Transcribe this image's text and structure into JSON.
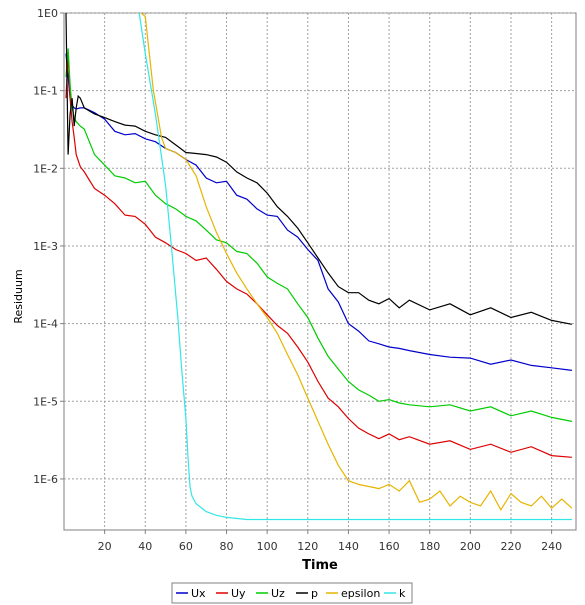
{
  "chart_data": {
    "type": "line",
    "xlabel": "Time",
    "ylabel": "Residuum",
    "yscale": "log",
    "xlim": [
      0,
      252
    ],
    "ylim": [
      2.2e-07,
      1
    ],
    "grid": true,
    "legend_position": "bottom",
    "x_ticks": [
      20,
      40,
      60,
      80,
      100,
      120,
      140,
      160,
      180,
      200,
      220,
      240
    ],
    "x_tick_labels": [
      "20",
      "40",
      "60",
      "80",
      "100",
      "120",
      "140",
      "160",
      "180",
      "200",
      "220",
      "240"
    ],
    "y_ticks": [
      1,
      0.1,
      0.01,
      0.001,
      0.0001,
      1e-05,
      1e-06
    ],
    "y_tick_labels": [
      "1E0",
      "1E-1",
      "1E-2",
      "1E-3",
      "1E-4",
      "1E-5",
      "1E-6"
    ],
    "series": [
      {
        "name": "Ux",
        "color": "#0000cc",
        "x": [
          1,
          2,
          3,
          4,
          5,
          6,
          8,
          10,
          15,
          20,
          25,
          30,
          35,
          40,
          45,
          50,
          55,
          60,
          65,
          70,
          75,
          80,
          85,
          90,
          95,
          100,
          105,
          110,
          115,
          120,
          125,
          130,
          135,
          140,
          145,
          150,
          155,
          160,
          165,
          170,
          180,
          190,
          200,
          210,
          220,
          230,
          240,
          250
        ],
        "y": [
          0.3,
          0.15,
          0.08,
          0.065,
          0.06,
          0.058,
          0.06,
          0.06,
          0.052,
          0.043,
          0.03,
          0.027,
          0.028,
          0.024,
          0.022,
          0.018,
          0.016,
          0.013,
          0.011,
          0.0075,
          0.0065,
          0.0068,
          0.0045,
          0.004,
          0.003,
          0.0025,
          0.0024,
          0.0016,
          0.0013,
          0.0009,
          0.00065,
          0.00028,
          0.00019,
          0.0001,
          8e-05,
          6e-05,
          5.5e-05,
          5e-05,
          4.8e-05,
          4.5e-05,
          4e-05,
          3.7e-05,
          3.6e-05,
          3e-05,
          3.4e-05,
          2.9e-05,
          2.7e-05,
          2.5e-05
        ]
      },
      {
        "name": "Uy",
        "color": "#dd0000",
        "x": [
          1,
          2,
          3,
          4,
          5,
          6,
          8,
          10,
          15,
          20,
          25,
          30,
          35,
          40,
          45,
          50,
          55,
          60,
          65,
          70,
          75,
          80,
          85,
          90,
          95,
          100,
          105,
          110,
          115,
          120,
          125,
          130,
          135,
          140,
          145,
          150,
          155,
          160,
          165,
          170,
          180,
          190,
          200,
          210,
          220,
          230,
          240,
          250
        ],
        "y": [
          0.08,
          0.3,
          0.08,
          0.04,
          0.025,
          0.015,
          0.0105,
          0.009,
          0.0055,
          0.0045,
          0.0035,
          0.0025,
          0.0024,
          0.0019,
          0.0013,
          0.0011,
          0.0009,
          0.0008,
          0.00065,
          0.0007,
          0.0005,
          0.00035,
          0.00028,
          0.00024,
          0.00018,
          0.00013,
          9.5e-05,
          7.5e-05,
          5e-05,
          3.2e-05,
          1.8e-05,
          1.1e-05,
          8.5e-06,
          6e-06,
          4.5e-06,
          3.8e-06,
          3.3e-06,
          3.8e-06,
          3.2e-06,
          3.5e-06,
          2.8e-06,
          3.1e-06,
          2.4e-06,
          2.8e-06,
          2.2e-06,
          2.6e-06,
          2e-06,
          1.9e-06
        ]
      },
      {
        "name": "Uz",
        "color": "#00cc00",
        "x": [
          1,
          2,
          3,
          4,
          5,
          6,
          8,
          10,
          15,
          20,
          25,
          30,
          35,
          40,
          45,
          50,
          55,
          60,
          65,
          70,
          75,
          80,
          85,
          90,
          95,
          100,
          105,
          110,
          115,
          120,
          125,
          130,
          135,
          140,
          145,
          150,
          155,
          160,
          165,
          170,
          180,
          190,
          200,
          210,
          220,
          230,
          240,
          250
        ],
        "y": [
          0.15,
          0.35,
          0.12,
          0.06,
          0.045,
          0.04,
          0.035,
          0.032,
          0.015,
          0.011,
          0.008,
          0.0075,
          0.0065,
          0.0068,
          0.0045,
          0.0035,
          0.003,
          0.0024,
          0.0021,
          0.0016,
          0.0012,
          0.0011,
          0.00085,
          0.0008,
          0.0006,
          0.0004,
          0.00033,
          0.00028,
          0.00018,
          0.00012,
          6.5e-05,
          3.8e-05,
          2.6e-05,
          1.8e-05,
          1.4e-05,
          1.2e-05,
          1e-05,
          1.05e-05,
          9.5e-06,
          9e-06,
          8.5e-06,
          9e-06,
          7.5e-06,
          8.5e-06,
          6.5e-06,
          7.5e-06,
          6.2e-06,
          5.5e-06
        ]
      },
      {
        "name": "p",
        "color": "#000000",
        "x": [
          1,
          2,
          3,
          4,
          5,
          6,
          7,
          8,
          10,
          15,
          20,
          25,
          30,
          35,
          40,
          45,
          50,
          55,
          60,
          65,
          70,
          75,
          80,
          85,
          90,
          95,
          100,
          105,
          110,
          115,
          120,
          125,
          130,
          135,
          140,
          145,
          150,
          155,
          160,
          165,
          170,
          180,
          190,
          200,
          210,
          220,
          230,
          240,
          250
        ],
        "y": [
          1,
          0.015,
          0.05,
          0.08,
          0.035,
          0.06,
          0.085,
          0.08,
          0.06,
          0.05,
          0.045,
          0.04,
          0.036,
          0.035,
          0.03,
          0.027,
          0.025,
          0.02,
          0.016,
          0.0155,
          0.015,
          0.014,
          0.012,
          0.009,
          0.0075,
          0.0065,
          0.0048,
          0.0032,
          0.0024,
          0.0017,
          0.0011,
          0.0007,
          0.00045,
          0.0003,
          0.00025,
          0.00025,
          0.0002,
          0.00018,
          0.00021,
          0.00016,
          0.0002,
          0.00015,
          0.00018,
          0.00013,
          0.00016,
          0.00012,
          0.00014,
          0.00011,
          9.8e-05
        ]
      },
      {
        "name": "epsilon",
        "color": "#e6b400",
        "x": [
          38,
          40,
          42,
          44,
          46,
          48,
          50,
          55,
          60,
          65,
          70,
          75,
          80,
          85,
          90,
          95,
          100,
          105,
          110,
          115,
          120,
          125,
          130,
          135,
          140,
          145,
          150,
          155,
          160,
          165,
          170,
          175,
          180,
          185,
          190,
          195,
          200,
          205,
          210,
          215,
          220,
          225,
          230,
          235,
          240,
          245,
          250
        ],
        "y": [
          1,
          0.9,
          0.3,
          0.1,
          0.05,
          0.025,
          0.018,
          0.016,
          0.013,
          0.008,
          0.0032,
          0.0015,
          0.0008,
          0.00045,
          0.00028,
          0.00018,
          0.00012,
          7.5e-05,
          4e-05,
          2.2e-05,
          1.1e-05,
          5.5e-06,
          2.8e-06,
          1.5e-06,
          9.5e-07,
          8.5e-07,
          8e-07,
          7.5e-07,
          8.5e-07,
          7e-07,
          9.5e-07,
          5e-07,
          5.5e-07,
          7e-07,
          4.5e-07,
          6e-07,
          5e-07,
          4.5e-07,
          7e-07,
          4e-07,
          6.5e-07,
          5e-07,
          4.5e-07,
          6e-07,
          4.2e-07,
          5.5e-07,
          4.2e-07
        ]
      },
      {
        "name": "k",
        "color": "#33e6e6",
        "x": [
          37,
          40,
          45,
          50,
          53,
          56,
          58,
          59,
          60,
          61,
          62,
          63,
          65,
          70,
          75,
          80,
          90,
          100,
          120,
          140,
          160,
          180,
          200,
          220,
          240,
          250
        ],
        "y": [
          1,
          0.3,
          0.05,
          0.006,
          0.0009,
          0.00012,
          2.5e-05,
          1.2e-05,
          6e-06,
          2e-06,
          8e-07,
          6e-07,
          4.8e-07,
          3.8e-07,
          3.4e-07,
          3.2e-07,
          3e-07,
          3e-07,
          3e-07,
          3e-07,
          3e-07,
          3e-07,
          3e-07,
          3e-07,
          3e-07,
          3e-07
        ]
      }
    ]
  }
}
